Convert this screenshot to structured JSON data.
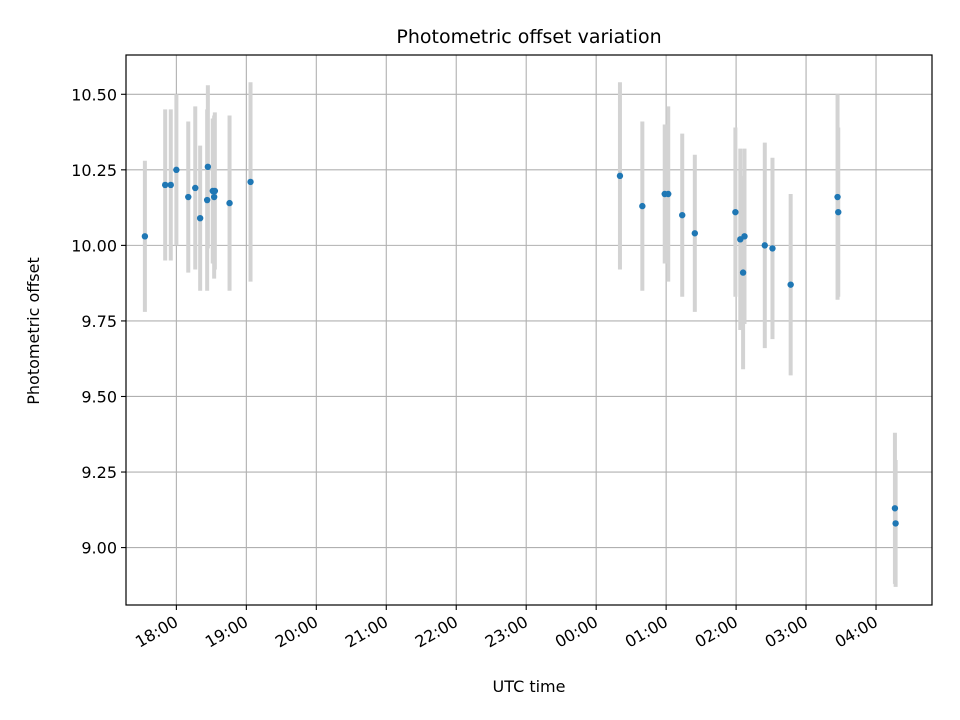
{
  "chart_data": {
    "type": "scatter",
    "title": "Photometric offset variation",
    "xlabel": "UTC time",
    "ylabel": "Photometric offset",
    "x_unit": "UTC time (hours, continuing past midnight)",
    "xlim": [
      17.28,
      28.8
    ],
    "ylim": [
      8.81,
      10.63
    ],
    "grid": true,
    "x_ticks": [
      {
        "value": 18,
        "label": "18:00"
      },
      {
        "value": 19,
        "label": "19:00"
      },
      {
        "value": 20,
        "label": "20:00"
      },
      {
        "value": 21,
        "label": "21:00"
      },
      {
        "value": 22,
        "label": "22:00"
      },
      {
        "value": 23,
        "label": "23:00"
      },
      {
        "value": 24,
        "label": "00:00"
      },
      {
        "value": 25,
        "label": "01:00"
      },
      {
        "value": 26,
        "label": "02:00"
      },
      {
        "value": 27,
        "label": "03:00"
      },
      {
        "value": 28,
        "label": "04:00"
      }
    ],
    "y_ticks": [
      {
        "value": 9.0,
        "label": "9.00"
      },
      {
        "value": 9.25,
        "label": "9.25"
      },
      {
        "value": 9.5,
        "label": "9.50"
      },
      {
        "value": 9.75,
        "label": "9.75"
      },
      {
        "value": 10.0,
        "label": "10.00"
      },
      {
        "value": 10.25,
        "label": "10.25"
      },
      {
        "value": 10.5,
        "label": "10.50"
      }
    ],
    "colors": {
      "points": "#1f77b4",
      "errorbars": "#d3d3d3",
      "grid": "#b0b0b0"
    },
    "points": [
      {
        "x": 17.55,
        "y": 10.03,
        "err": 0.25
      },
      {
        "x": 17.84,
        "y": 10.2,
        "err": 0.25
      },
      {
        "x": 17.92,
        "y": 10.2,
        "err": 0.25
      },
      {
        "x": 18.0,
        "y": 10.25,
        "err": 0.25
      },
      {
        "x": 18.17,
        "y": 10.16,
        "err": 0.25
      },
      {
        "x": 18.27,
        "y": 10.19,
        "err": 0.27
      },
      {
        "x": 18.34,
        "y": 10.09,
        "err": 0.24
      },
      {
        "x": 18.44,
        "y": 10.15,
        "err": 0.3
      },
      {
        "x": 18.45,
        "y": 10.26,
        "err": 0.27
      },
      {
        "x": 18.52,
        "y": 10.18,
        "err": 0.24
      },
      {
        "x": 18.54,
        "y": 10.16,
        "err": 0.27
      },
      {
        "x": 18.55,
        "y": 10.18,
        "err": 0.26
      },
      {
        "x": 18.76,
        "y": 10.14,
        "err": 0.29
      },
      {
        "x": 19.06,
        "y": 10.21,
        "err": 0.33
      },
      {
        "x": 24.34,
        "y": 10.23,
        "err": 0.31
      },
      {
        "x": 24.66,
        "y": 10.13,
        "err": 0.28
      },
      {
        "x": 24.98,
        "y": 10.17,
        "err": 0.23
      },
      {
        "x": 25.03,
        "y": 10.17,
        "err": 0.29
      },
      {
        "x": 25.23,
        "y": 10.1,
        "err": 0.27
      },
      {
        "x": 25.41,
        "y": 10.04,
        "err": 0.26
      },
      {
        "x": 25.99,
        "y": 10.11,
        "err": 0.28
      },
      {
        "x": 26.06,
        "y": 10.02,
        "err": 0.3
      },
      {
        "x": 26.1,
        "y": 9.91,
        "err": 0.32
      },
      {
        "x": 26.12,
        "y": 10.03,
        "err": 0.29
      },
      {
        "x": 26.41,
        "y": 10.0,
        "err": 0.34
      },
      {
        "x": 26.52,
        "y": 9.99,
        "err": 0.3
      },
      {
        "x": 26.78,
        "y": 9.87,
        "err": 0.3
      },
      {
        "x": 27.45,
        "y": 10.16,
        "err": 0.34
      },
      {
        "x": 27.46,
        "y": 10.11,
        "err": 0.28
      },
      {
        "x": 28.27,
        "y": 9.13,
        "err": 0.25
      },
      {
        "x": 28.28,
        "y": 9.08,
        "err": 0.21
      }
    ]
  }
}
